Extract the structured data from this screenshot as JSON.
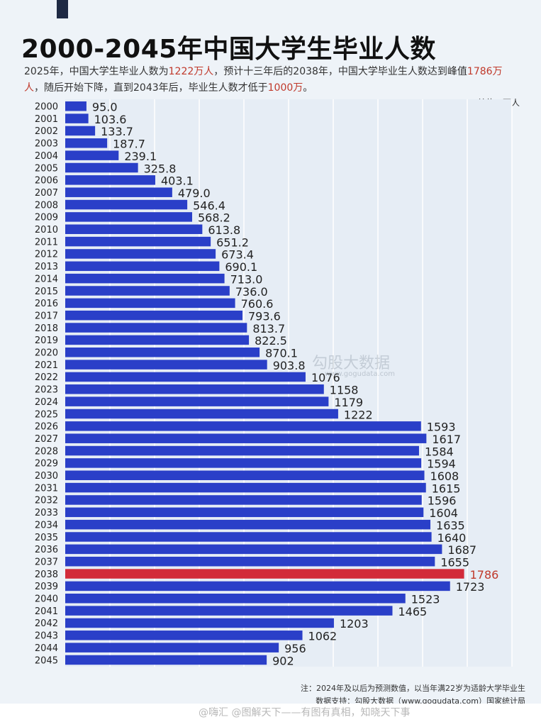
{
  "header": {
    "title": "2000-2045年中国大学生毕业人数",
    "subtitle_parts": [
      {
        "text": "2025年，中国大学生毕业人数为",
        "hl": false
      },
      {
        "text": "1222万人",
        "hl": true
      },
      {
        "text": "，预计十三年后的2038年，中国大学毕业生人数达到峰值",
        "hl": false
      },
      {
        "text": "1786万人",
        "hl": true
      },
      {
        "text": "，随后开始下降，直到2043年后，毕业生人数才低于",
        "hl": false
      },
      {
        "text": "1000万",
        "hl": true
      },
      {
        "text": "。",
        "hl": false
      }
    ],
    "unit": "单位：万人"
  },
  "colors": {
    "bar": "#2a3fc8",
    "bar_peak": "#d22b3a",
    "highlight_text": "#c0392b",
    "grid": "#ffffff"
  },
  "chart_data": {
    "type": "bar",
    "orientation": "horizontal",
    "title": "2000-2045年中国大学生毕业人数",
    "unit": "万人",
    "categories": [
      "2000",
      "2001",
      "2002",
      "2003",
      "2004",
      "2005",
      "2006",
      "2007",
      "2008",
      "2009",
      "2010",
      "2011",
      "2012",
      "2013",
      "2014",
      "2015",
      "2016",
      "2017",
      "2018",
      "2019",
      "2020",
      "2021",
      "2022",
      "2023",
      "2024",
      "2025",
      "2026",
      "2027",
      "2028",
      "2029",
      "2030",
      "2031",
      "2032",
      "2033",
      "2034",
      "2035",
      "2036",
      "2037",
      "2038",
      "2039",
      "2040",
      "2041",
      "2042",
      "2043",
      "2044",
      "2045"
    ],
    "values": [
      95.0,
      103.6,
      133.7,
      187.7,
      239.1,
      325.8,
      403.1,
      479.0,
      546.4,
      568.2,
      613.8,
      651.2,
      673.4,
      690.1,
      713.0,
      736.0,
      760.6,
      793.6,
      813.7,
      822.5,
      870.1,
      903.8,
      1076,
      1158,
      1179,
      1222,
      1593,
      1617,
      1584,
      1594,
      1608,
      1615,
      1596,
      1604,
      1635,
      1640,
      1687,
      1655,
      1786,
      1723,
      1523,
      1465,
      1203,
      1062,
      956,
      902
    ],
    "value_labels": [
      "95.0",
      "103.6",
      "133.7",
      "187.7",
      "239.1",
      "325.8",
      "403.1",
      "479.0",
      "546.4",
      "568.2",
      "613.8",
      "651.2",
      "673.4",
      "690.1",
      "713.0",
      "736.0",
      "760.6",
      "793.6",
      "813.7",
      "822.5",
      "870.1",
      "903.8",
      "1076",
      "1158",
      "1179",
      "1222",
      "1593",
      "1617",
      "1584",
      "1594",
      "1608",
      "1615",
      "1596",
      "1604",
      "1635",
      "1640",
      "1687",
      "1655",
      "1786",
      "1723",
      "1523",
      "1465",
      "1203",
      "1062",
      "956",
      "902"
    ],
    "highlight_category": "2038",
    "xlim": [
      0,
      2000
    ],
    "grid": true
  },
  "watermark": {
    "text": "勾股大数据",
    "url": "www.gogudata.com"
  },
  "note": {
    "line1": "注：2024年及以后为预测数值，以当年满22岁为适龄大学毕业生",
    "line2": "数据支持：勾股大数据（www.gogudata.com）国家统计局"
  },
  "footer": {
    "text": "@嗨汇 @图解天下——有图有真相，知晓天下事"
  }
}
